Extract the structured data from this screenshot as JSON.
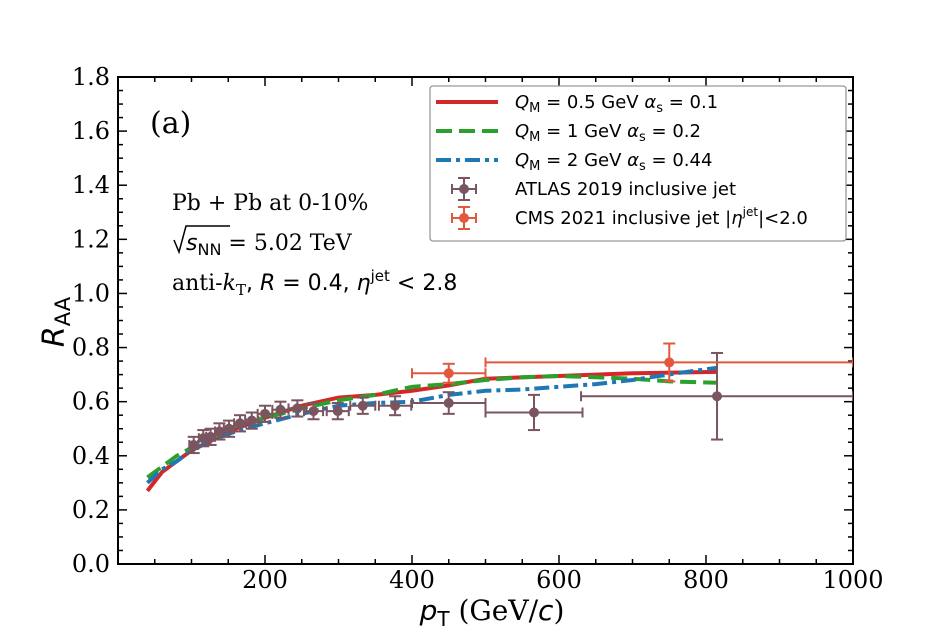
{
  "chart_data": {
    "type": "line",
    "panel_label": "(a)",
    "xlabel": "p_T (GeV/c)",
    "ylabel": "R_AA",
    "xlim": [
      0,
      1000
    ],
    "ylim": [
      0.0,
      1.8
    ],
    "xticks": [
      "200",
      "400",
      "600",
      "800",
      "1000"
    ],
    "yticks": [
      "0.0",
      "0.2",
      "0.4",
      "0.6",
      "0.8",
      "1.0",
      "1.2",
      "1.4",
      "1.6",
      "1.8"
    ],
    "annotations": [
      "Pb + Pb at 0-10%",
      "√s_NN = 5.02 TeV",
      "anti-k_T, R = 0.4, η^jet < 2.8"
    ],
    "legend_position": "top-right",
    "series": [
      {
        "name": "Q_M = 0.5 GeV α_s = 0.1",
        "style": "solid",
        "color": "#d62728",
        "x": [
          40,
          60,
          80,
          100,
          130,
          160,
          200,
          250,
          300,
          350,
          400,
          450,
          500,
          600,
          700,
          815
        ],
        "y": [
          0.27,
          0.34,
          0.38,
          0.42,
          0.46,
          0.5,
          0.54,
          0.585,
          0.615,
          0.625,
          0.64,
          0.66,
          0.685,
          0.695,
          0.705,
          0.71
        ]
      },
      {
        "name": "Q_M = 1 GeV α_s = 0.2",
        "style": "dashed",
        "color": "#2ca02c",
        "x": [
          40,
          60,
          80,
          100,
          130,
          160,
          200,
          250,
          300,
          350,
          400,
          450,
          500,
          550,
          600,
          650,
          700,
          750,
          815
        ],
        "y": [
          0.32,
          0.36,
          0.4,
          0.43,
          0.47,
          0.51,
          0.54,
          0.575,
          0.605,
          0.625,
          0.655,
          0.665,
          0.68,
          0.69,
          0.695,
          0.69,
          0.685,
          0.675,
          0.67
        ]
      },
      {
        "name": "Q_M = 2 GeV α_s = 0.44",
        "style": "dashdot",
        "color": "#1f77b4",
        "x": [
          40,
          60,
          80,
          100,
          130,
          160,
          200,
          250,
          300,
          350,
          400,
          450,
          500,
          550,
          600,
          650,
          700,
          760,
          815
        ],
        "y": [
          0.3,
          0.35,
          0.38,
          0.42,
          0.46,
          0.49,
          0.52,
          0.555,
          0.585,
          0.595,
          0.6,
          0.625,
          0.64,
          0.645,
          0.655,
          0.665,
          0.68,
          0.705,
          0.725
        ]
      },
      {
        "name": "ATLAS 2019 inclusive jet",
        "style": "errorbar",
        "color": "#7a5560",
        "x": [
          103,
          116,
          126,
          138,
          151,
          166,
          182,
          200,
          221,
          244,
          266,
          299,
          333,
          377,
          450,
          566,
          815
        ],
        "y": [
          0.44,
          0.465,
          0.47,
          0.49,
          0.5,
          0.52,
          0.53,
          0.555,
          0.57,
          0.575,
          0.565,
          0.565,
          0.585,
          0.585,
          0.595,
          0.56,
          0.62
        ],
        "xerr_low": [
          6,
          6,
          6,
          6,
          7,
          8,
          9,
          10,
          11,
          12,
          13,
          15,
          17,
          22,
          50,
          66,
          185
        ],
        "xerr_high": [
          6,
          6,
          6,
          6,
          7,
          8,
          9,
          10,
          11,
          12,
          13,
          15,
          17,
          22,
          50,
          66,
          185
        ],
        "yerr": [
          0.03,
          0.03,
          0.03,
          0.03,
          0.03,
          0.03,
          0.03,
          0.03,
          0.03,
          0.03,
          0.03,
          0.03,
          0.03,
          0.035,
          0.04,
          0.065,
          0.16
        ]
      },
      {
        "name": "CMS 2021 inclusive jet |η^jet|<2.0",
        "style": "errorbar",
        "color": "#e2583e",
        "x": [
          450,
          750
        ],
        "y": [
          0.705,
          0.745
        ],
        "xerr_low": [
          50,
          250
        ],
        "xerr_high": [
          50,
          250
        ],
        "yerr": [
          0.035,
          0.07
        ]
      }
    ]
  }
}
